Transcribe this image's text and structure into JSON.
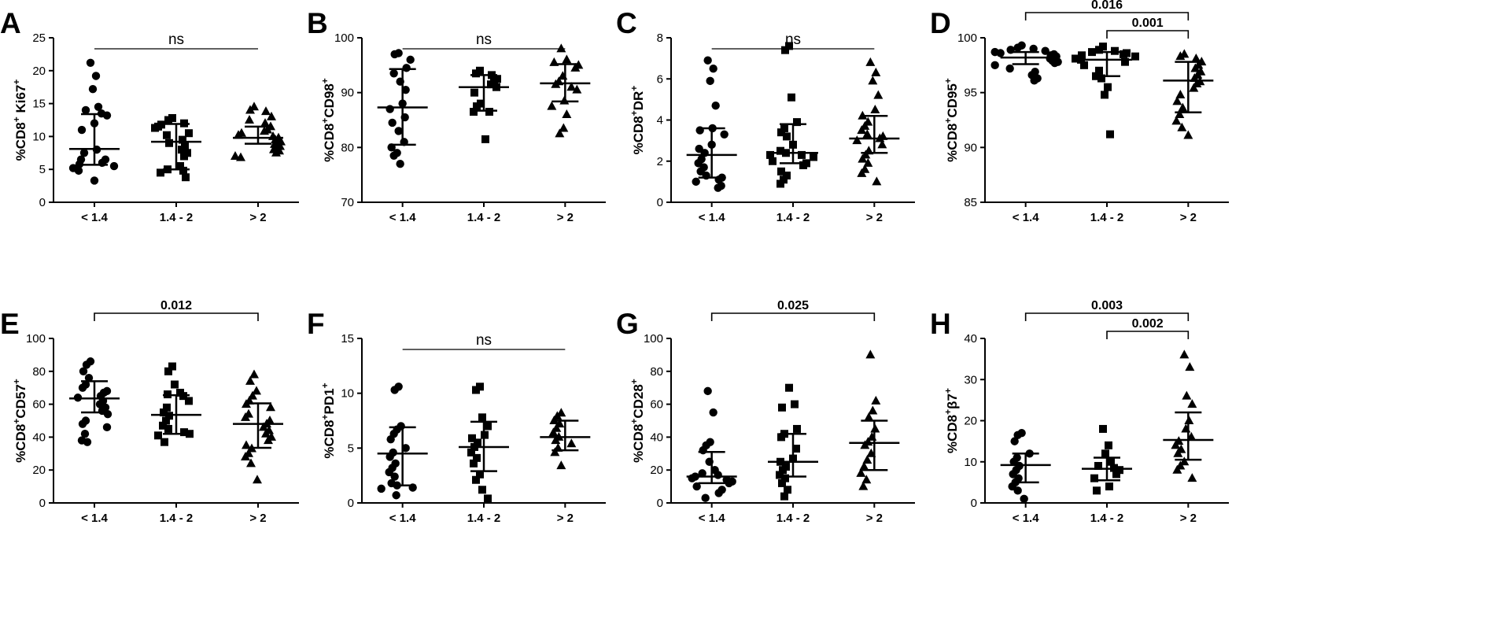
{
  "chart_data": [
    {
      "type": "scatter",
      "panel": "A",
      "ylabel": "%CD8⁺ Ki67⁺",
      "categories": [
        "< 1.4",
        "1.4 - 2",
        "> 2"
      ],
      "ylim": [
        0,
        25
      ],
      "yticks": [
        0,
        5,
        10,
        15,
        20,
        25
      ],
      "groups": [
        {
          "marker": "circle",
          "values": [
            21.2,
            19.2,
            17.2,
            14.5,
            14,
            13.5,
            13.2,
            12,
            11,
            8,
            7.5,
            6.5,
            6.5,
            6,
            5.8,
            5.5,
            5.2,
            4.8,
            3.3
          ],
          "median": 8.1,
          "q1": 5.7,
          "q3": 13.4
        },
        {
          "marker": "square",
          "values": [
            12.8,
            12.5,
            12,
            11.8,
            11.5,
            11.3,
            10.5,
            10.2,
            9.5,
            9,
            8.5,
            8,
            7.5,
            7,
            5.5,
            5,
            4.8,
            4.5,
            3.8
          ],
          "median": 9.2,
          "q1": 5.0,
          "q3": 11.9
        },
        {
          "marker": "triangle",
          "values": [
            14.5,
            14,
            13.8,
            13,
            12.5,
            12,
            11.5,
            11,
            10.8,
            10.5,
            10.2,
            10,
            9.8,
            9.5,
            9.2,
            9,
            8.8,
            8.5,
            8.2,
            8,
            7.8,
            7.5,
            7,
            6.8
          ],
          "median": 9.8,
          "q1": 8.9,
          "q3": 11.5
        }
      ],
      "comparisons": [
        {
          "from": 0,
          "to": 2,
          "label": "ns",
          "style": "line"
        }
      ]
    },
    {
      "type": "scatter",
      "panel": "B",
      "ylabel": "%CD8⁺CD98⁺",
      "categories": [
        "< 1.4",
        "1.4 - 2",
        "> 2"
      ],
      "ylim": [
        70,
        100
      ],
      "yticks": [
        70,
        80,
        90,
        100
      ],
      "groups": [
        {
          "marker": "circle",
          "values": [
            97.2,
            97,
            96,
            94.5,
            93.5,
            92,
            90.5,
            88,
            87,
            85.5,
            84.5,
            83,
            81,
            80,
            79,
            78.5,
            77
          ],
          "median": 87.3,
          "q1": 80.5,
          "q3": 94.3
        },
        {
          "marker": "square",
          "values": [
            94,
            93.5,
            93.2,
            92.5,
            92,
            91.5,
            91,
            90,
            88,
            87.5,
            86.5,
            86.5,
            81.5
          ],
          "median": 91.0,
          "q1": 86.7,
          "q3": 93.2
        },
        {
          "marker": "triangle",
          "values": [
            98,
            96,
            95.5,
            95,
            94.5,
            93,
            92,
            91.5,
            91,
            90.5,
            88.5,
            87.5,
            86,
            83.5,
            82.5
          ],
          "median": 91.7,
          "q1": 88.4,
          "q3": 95.2
        }
      ],
      "comparisons": [
        {
          "from": 0,
          "to": 2,
          "label": "ns",
          "style": "line"
        }
      ]
    },
    {
      "type": "scatter",
      "panel": "C",
      "ylabel": "%CD8⁺DR⁺",
      "categories": [
        "< 1.4",
        "1.4 - 2",
        "> 2"
      ],
      "ylim": [
        0,
        8
      ],
      "yticks": [
        0,
        2,
        4,
        6,
        8
      ],
      "groups": [
        {
          "marker": "circle",
          "values": [
            6.9,
            6.5,
            5.9,
            4.7,
            3.6,
            3.5,
            3.3,
            2.8,
            2.6,
            2.4,
            2.1,
            1.9,
            1.7,
            1.5,
            1.3,
            1.2,
            1.1,
            1.0,
            0.8,
            0.7
          ],
          "median": 2.3,
          "q1": 1.2,
          "q3": 3.6
        },
        {
          "marker": "square",
          "values": [
            7.6,
            7.4,
            5.1,
            3.9,
            3.6,
            3.4,
            3.2,
            2.8,
            2.5,
            2.4,
            2.3,
            2.3,
            2.2,
            2.0,
            1.9,
            1.8,
            1.5,
            1.3,
            1.1,
            0.9
          ],
          "median": 2.4,
          "q1": 1.9,
          "q3": 3.8
        },
        {
          "marker": "triangle",
          "values": [
            6.8,
            6.3,
            5.9,
            5.2,
            4.5,
            4.2,
            3.9,
            3.7,
            3.5,
            3.3,
            3.2,
            3.1,
            3.0,
            2.8,
            2.5,
            2.3,
            2.1,
            1.9,
            1.6,
            1.4,
            1.0
          ],
          "median": 3.1,
          "q1": 2.4,
          "q3": 4.2
        }
      ],
      "comparisons": [
        {
          "from": 0,
          "to": 2,
          "label": "ns",
          "style": "line"
        }
      ]
    },
    {
      "type": "scatter",
      "panel": "D",
      "ylabel": "%CD8⁺CD95⁺",
      "categories": [
        "< 1.4",
        "1.4 - 2",
        "> 2"
      ],
      "ylim": [
        85,
        100
      ],
      "yticks": [
        85,
        90,
        95,
        100
      ],
      "groups": [
        {
          "marker": "circle",
          "values": [
            99.3,
            99.1,
            99,
            98.9,
            98.8,
            98.7,
            98.6,
            98.5,
            98.4,
            98.3,
            98.2,
            98.1,
            98,
            97.9,
            97.8,
            97.7,
            97.5,
            97.2,
            96.9,
            96.6,
            96.3,
            96.1
          ],
          "median": 98.2,
          "q1": 97.6,
          "q3": 98.7
        },
        {
          "marker": "square",
          "values": [
            99.2,
            98.9,
            98.8,
            98.7,
            98.6,
            98.5,
            98.4,
            98.3,
            98.1,
            98,
            97.8,
            97.5,
            97,
            96.5,
            96.3,
            95.5,
            94.8,
            91.2
          ],
          "median": 98.0,
          "q1": 96.5,
          "q3": 98.7
        },
        {
          "marker": "triangle",
          "values": [
            98.5,
            98.3,
            98.1,
            97.8,
            97.5,
            97.2,
            96.9,
            96.6,
            96.3,
            96,
            95.8,
            95.4,
            94.8,
            94.2,
            93.6,
            93,
            92.4,
            91.8,
            91.1
          ],
          "median": 96.1,
          "q1": 93.2,
          "q3": 97.8
        }
      ],
      "comparisons": [
        {
          "from": 0,
          "to": 2,
          "label": "0.016",
          "style": "bracket"
        },
        {
          "from": 1,
          "to": 2,
          "label": "0.001",
          "style": "bracket"
        }
      ]
    },
    {
      "type": "scatter",
      "panel": "E",
      "ylabel": "%CD8⁺CD57⁺",
      "categories": [
        "< 1.4",
        "1.4 - 2",
        "> 2"
      ],
      "ylim": [
        0,
        100
      ],
      "yticks": [
        0,
        20,
        40,
        60,
        80,
        100
      ],
      "groups": [
        {
          "marker": "circle",
          "values": [
            86,
            84,
            80,
            76,
            72,
            70,
            68,
            67,
            65,
            64,
            62,
            60,
            58,
            56,
            54,
            50,
            48,
            46,
            42,
            38,
            37
          ],
          "median": 63.5,
          "q1": 55.0,
          "q3": 74.0
        },
        {
          "marker": "square",
          "values": [
            83,
            80,
            72,
            67,
            66,
            65,
            62,
            58,
            55,
            53,
            50,
            47,
            45,
            43,
            42,
            41,
            37
          ],
          "median": 53.5,
          "q1": 42.0,
          "q3": 65.5
        },
        {
          "marker": "triangle",
          "values": [
            78,
            74,
            68,
            65,
            62,
            60,
            58,
            54,
            52,
            50,
            48,
            46,
            44,
            42,
            40,
            38,
            35,
            33,
            30,
            28,
            24,
            14
          ],
          "median": 48.0,
          "q1": 33.5,
          "q3": 60.5
        }
      ],
      "comparisons": [
        {
          "from": 0,
          "to": 2,
          "label": "0.012",
          "style": "bracket"
        }
      ]
    },
    {
      "type": "scatter",
      "panel": "F",
      "ylabel": "%CD8⁺PD1⁺",
      "categories": [
        "< 1.4",
        "1.4 - 2",
        "> 2"
      ],
      "ylim": [
        0,
        15
      ],
      "yticks": [
        0,
        5,
        10,
        15
      ],
      "groups": [
        {
          "marker": "circle",
          "values": [
            10.6,
            10.3,
            7.0,
            6.7,
            6.3,
            5.8,
            5.0,
            4.6,
            4.2,
            3.6,
            3.2,
            2.8,
            2.4,
            1.8,
            1.6,
            1.4,
            1.3,
            0.7
          ],
          "median": 4.5,
          "q1": 1.6,
          "q3": 6.9
        },
        {
          "marker": "square",
          "values": [
            10.6,
            10.3,
            7.8,
            7.0,
            6.2,
            5.9,
            5.5,
            5.1,
            4.6,
            4.1,
            3.6,
            2.6,
            2.1,
            1.2,
            0.4
          ],
          "median": 5.1,
          "q1": 2.9,
          "q3": 7.4
        },
        {
          "marker": "triangle",
          "values": [
            8.2,
            7.9,
            7.5,
            7.2,
            6.8,
            6.4,
            6.0,
            5.7,
            5.4,
            5.0,
            4.6,
            3.4
          ],
          "median": 6.0,
          "q1": 4.8,
          "q3": 7.5
        }
      ],
      "comparisons": [
        {
          "from": 0,
          "to": 2,
          "label": "ns",
          "style": "line"
        }
      ]
    },
    {
      "type": "scatter",
      "panel": "G",
      "ylabel": "%CD8⁺CD28⁺",
      "categories": [
        "< 1.4",
        "1.4 - 2",
        "> 2"
      ],
      "ylim": [
        0,
        100
      ],
      "yticks": [
        0,
        20,
        40,
        60,
        80,
        100
      ],
      "groups": [
        {
          "marker": "circle",
          "values": [
            68,
            55,
            37,
            35,
            32,
            25,
            20,
            18,
            17,
            16,
            15,
            14,
            13,
            12,
            10,
            8,
            6,
            3
          ],
          "median": 16.0,
          "q1": 12.0,
          "q3": 31.0
        },
        {
          "marker": "square",
          "values": [
            70,
            60,
            58,
            45,
            42,
            40,
            33,
            27,
            25,
            22,
            20,
            17,
            15,
            12,
            8,
            4
          ],
          "median": 25.0,
          "q1": 16.0,
          "q3": 42.0
        },
        {
          "marker": "triangle",
          "values": [
            90,
            62,
            56,
            52,
            45,
            40,
            37,
            35,
            30,
            26,
            22,
            18,
            14,
            10
          ],
          "median": 36.5,
          "q1": 20.0,
          "q3": 50.0
        }
      ],
      "comparisons": [
        {
          "from": 0,
          "to": 2,
          "label": "0.025",
          "style": "bracket"
        }
      ]
    },
    {
      "type": "scatter",
      "panel": "H",
      "ylabel": "%CD8⁺β7⁺",
      "categories": [
        "< 1.4",
        "1.4 - 2",
        "> 2"
      ],
      "ylim": [
        0,
        40
      ],
      "yticks": [
        0,
        10,
        20,
        30,
        40
      ],
      "groups": [
        {
          "marker": "circle",
          "values": [
            17,
            16.5,
            15,
            12,
            11,
            10,
            9,
            8,
            7,
            6,
            5,
            4,
            3,
            1
          ],
          "median": 9.2,
          "q1": 5.0,
          "q3": 12.0
        },
        {
          "marker": "square",
          "values": [
            18,
            14,
            12,
            10,
            9,
            8.5,
            8,
            7,
            6,
            4,
            3
          ],
          "median": 8.3,
          "q1": 5.5,
          "q3": 11.0
        },
        {
          "marker": "triangle",
          "values": [
            36,
            33,
            26,
            24,
            20,
            18,
            16,
            15,
            14,
            13,
            12,
            10,
            9,
            8,
            6
          ],
          "median": 15.3,
          "q1": 10.5,
          "q3": 22.0
        }
      ],
      "comparisons": [
        {
          "from": 0,
          "to": 2,
          "label": "0.003",
          "style": "bracket"
        },
        {
          "from": 1,
          "to": 2,
          "label": "0.002",
          "style": "bracket"
        }
      ]
    }
  ]
}
